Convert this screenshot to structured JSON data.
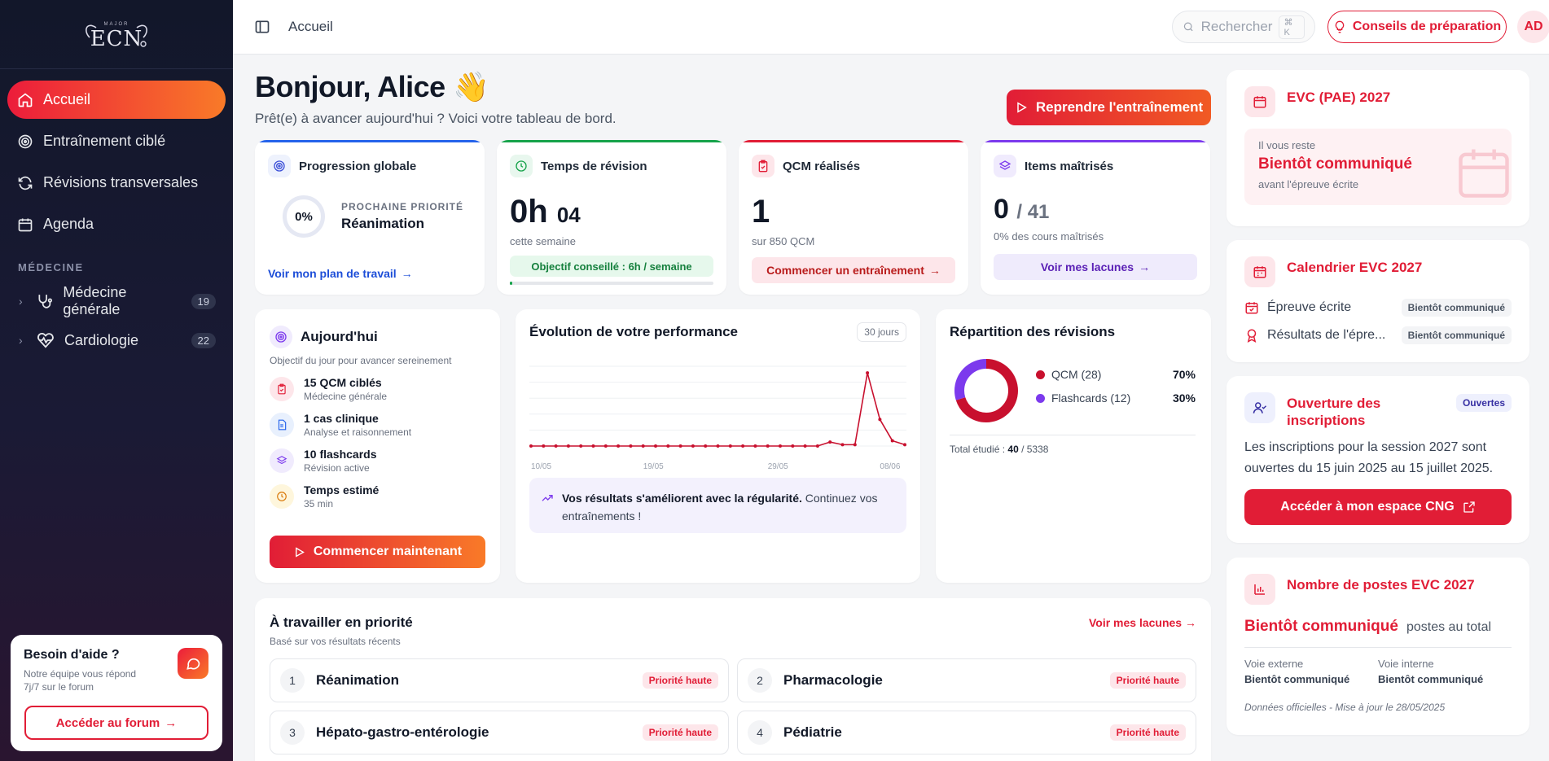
{
  "app": {
    "logo_text": "ECN",
    "logo_small": "MAJOR"
  },
  "sidebar": {
    "nav": [
      {
        "label": "Accueil",
        "icon": "home-icon",
        "active": true
      },
      {
        "label": "Entraînement ciblé",
        "icon": "target-icon"
      },
      {
        "label": "Révisions transversales",
        "icon": "refresh-icon"
      },
      {
        "label": "Agenda",
        "icon": "calendar-icon"
      }
    ],
    "section_label": "MÉDECINE",
    "categories": [
      {
        "label": "Médecine générale",
        "count": "19",
        "icon": "stethoscope-icon"
      },
      {
        "label": "Cardiologie",
        "count": "22",
        "icon": "heart-pulse-icon"
      }
    ],
    "help": {
      "title": "Besoin d'aide ?",
      "subtitle": "Notre équipe vous répond 7j/7 sur le forum",
      "button": "Accéder au forum"
    }
  },
  "topbar": {
    "breadcrumb": "Accueil",
    "search_placeholder": "Rechercher",
    "search_shortcut": "⌘ K",
    "tips_button": "Conseils de préparation",
    "avatar_initials": "AD"
  },
  "greeting": {
    "title": "Bonjour, Alice 👋",
    "subtitle": "Prêt(e) à avancer aujourd'hui ? Voici votre tableau de bord.",
    "resume_button": "Reprendre l'entraînement"
  },
  "stats": {
    "progression": {
      "title": "Progression globale",
      "percent": "0%",
      "next_label": "PROCHAINE PRIORITÉ",
      "next_value": "Réanimation",
      "link": "Voir mon plan de travail"
    },
    "revision_time": {
      "title": "Temps de révision",
      "hours": "0h",
      "minutes": "04",
      "period": "cette semaine",
      "goal": "Objectif conseillé : 6h / semaine",
      "progress": 0.01
    },
    "qcm": {
      "title": "QCM réalisés",
      "value": "1",
      "total": "sur 850 QCM",
      "button": "Commencer un entraînement"
    },
    "items": {
      "title": "Items maîtrisés",
      "value": "0",
      "total": "/ 41",
      "sub": "0% des cours maîtrisés",
      "button": "Voir mes lacunes"
    }
  },
  "today": {
    "title": "Aujourd'hui",
    "description": "Objectif du jour pour avancer sereinement",
    "tasks": [
      {
        "title": "15 QCM ciblés",
        "sub": "Médecine générale",
        "icon": "clipboard-check-icon"
      },
      {
        "title": "1 cas clinique",
        "sub": "Analyse et raisonnement",
        "icon": "document-icon"
      },
      {
        "title": "10 flashcards",
        "sub": "Révision active",
        "icon": "layers-icon"
      },
      {
        "title": "Temps estimé",
        "sub": "35 min",
        "icon": "clock-icon"
      }
    ],
    "button": "Commencer maintenant"
  },
  "performance": {
    "title": "Évolution de votre performance",
    "range": "30 jours",
    "insight_bold": "Vos résultats s'améliorent avec la régularité.",
    "insight_rest": " Continuez vos entraînements !"
  },
  "chart_data": {
    "type": "line",
    "x_ticks": [
      "10/05",
      "19/05",
      "29/05",
      "08/06"
    ],
    "values": [
      0,
      0,
      0,
      0,
      0,
      0,
      0,
      0,
      0,
      0,
      0,
      0,
      0,
      0,
      0,
      0,
      0,
      0,
      0,
      0,
      0,
      0,
      0,
      0,
      0.3,
      0.1,
      0.1,
      5.5,
      2.0,
      0.4,
      0.1
    ],
    "ylim": [
      0,
      6
    ],
    "grid": true,
    "color": "#c8102e"
  },
  "repartition": {
    "title": "Répartition des révisions",
    "series": [
      {
        "name": "QCM (28)",
        "pct": "70%",
        "value": 70,
        "color": "#c8102e"
      },
      {
        "name": "Flashcards (12)",
        "pct": "30%",
        "value": 30,
        "color": "#7c3aed"
      }
    ],
    "total_label": "Total étudié : ",
    "total_value": "40",
    "total_max": " / 5338"
  },
  "priority": {
    "title": "À travailler en priorité",
    "description": "Basé sur vos résultats récents",
    "link": "Voir mes lacunes",
    "items": [
      {
        "num": "1",
        "name": "Réanimation",
        "badge": "Priorité haute"
      },
      {
        "num": "2",
        "name": "Pharmacologie",
        "badge": "Priorité haute"
      },
      {
        "num": "3",
        "name": "Hépato-gastro-entérologie",
        "badge": "Priorité haute"
      },
      {
        "num": "4",
        "name": "Pédiatrie",
        "badge": "Priorité haute"
      }
    ]
  },
  "right": {
    "evc": {
      "title": "EVC (PAE) 2027",
      "line1": "Il vous reste",
      "line2": "Bientôt communiqué",
      "line3": "avant l'épreuve écrite"
    },
    "calendar": {
      "title": "Calendrier EVC 2027",
      "rows": [
        {
          "label": "Épreuve écrite",
          "chip": "Bientôt communiqué",
          "icon": "calendar-check-icon"
        },
        {
          "label": "Résultats de l'épre...",
          "chip": "Bientôt communiqué",
          "icon": "award-icon"
        }
      ]
    },
    "inscriptions": {
      "title": "Ouverture des inscriptions",
      "badge": "Ouvertes",
      "text": "Les inscriptions pour la session 2027 sont ouvertes du 15 juin 2025 au 15 juillet 2025.",
      "button": "Accéder à mon espace CNG"
    },
    "postes": {
      "title": "Nombre de postes EVC 2027",
      "value": "Bientôt communiqué",
      "value_label": "postes au total",
      "voie_ext_label": "Voie externe",
      "voie_ext_value": "Bientôt communiqué",
      "voie_int_label": "Voie interne",
      "voie_int_value": "Bientôt communiqué",
      "source": "Données officielles - Mise à jour le 28/05/2025"
    }
  },
  "colors": {
    "accent": "#e11d36",
    "accent2": "#f97a28",
    "sidebar": "#12172a"
  }
}
